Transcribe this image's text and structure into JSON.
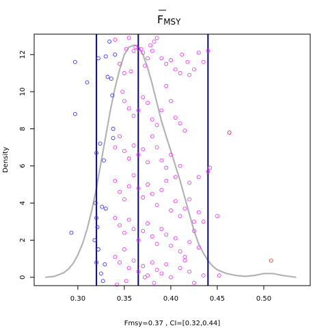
{
  "chart_data": {
    "type": "scatter",
    "title": "F",
    "title_subscript": "MSY",
    "title_overbar": true,
    "xlabel": "Fmsy=0.37 , CI=[0.32,0.44]",
    "ylabel": "Density",
    "xlim": [
      0.253,
      0.55
    ],
    "ylim": [
      -0.45,
      13.1
    ],
    "x_ticks": [
      0.3,
      0.35,
      0.4,
      0.45,
      0.5
    ],
    "x_tick_labels": [
      "0.30",
      "0.35",
      "0.40",
      "0.45",
      "0.50"
    ],
    "y_ticks": [
      0,
      2,
      4,
      6,
      8,
      10,
      12
    ],
    "y_tick_labels": [
      "0",
      "2",
      "4",
      "6",
      "8",
      "10",
      "12"
    ],
    "vlines": {
      "values": [
        0.32,
        0.365,
        0.44
      ],
      "color": "#00008b"
    },
    "density_curve": {
      "color": "#b3b3b3",
      "x": [
        0.265,
        0.275,
        0.285,
        0.29,
        0.295,
        0.3,
        0.305,
        0.31,
        0.315,
        0.32,
        0.325,
        0.33,
        0.335,
        0.34,
        0.345,
        0.35,
        0.355,
        0.36,
        0.363,
        0.366,
        0.37,
        0.375,
        0.38,
        0.385,
        0.39,
        0.395,
        0.4,
        0.405,
        0.41,
        0.415,
        0.42,
        0.425,
        0.43,
        0.435,
        0.44,
        0.445,
        0.45,
        0.46,
        0.47,
        0.48,
        0.49,
        0.5,
        0.51,
        0.52,
        0.535
      ],
      "y": [
        0.0,
        0.05,
        0.25,
        0.45,
        0.75,
        1.2,
        1.8,
        2.6,
        3.6,
        4.8,
        6.2,
        7.6,
        9.0,
        10.2,
        11.2,
        12.0,
        12.4,
        12.5,
        12.5,
        12.35,
        12.0,
        11.3,
        10.4,
        9.4,
        8.4,
        7.6,
        6.8,
        6.0,
        5.2,
        4.3,
        3.4,
        2.5,
        1.8,
        1.3,
        0.9,
        0.6,
        0.4,
        0.2,
        0.1,
        0.05,
        0.1,
        0.2,
        0.2,
        0.1,
        0.0
      ]
    },
    "series": [
      {
        "color": "#3333ff",
        "points": [
          [
            0.297,
            11.6
          ],
          [
            0.297,
            8.8
          ],
          [
            0.31,
            10.5
          ],
          [
            0.293,
            2.4
          ],
          [
            0.32,
            6.7
          ],
          [
            0.322,
            11.8
          ],
          [
            0.324,
            7.2
          ],
          [
            0.326,
            3.8
          ],
          [
            0.328,
            6.3
          ],
          [
            0.33,
            11.9
          ],
          [
            0.33,
            3.7
          ],
          [
            0.332,
            10.8
          ],
          [
            0.334,
            12.7
          ],
          [
            0.336,
            10.7
          ],
          [
            0.34,
            12.0
          ],
          [
            0.337,
            9.8
          ],
          [
            0.338,
            7.5
          ],
          [
            0.338,
            8.0
          ],
          [
            0.325,
            0.2
          ],
          [
            0.327,
            -0.2
          ],
          [
            0.329,
            0.7
          ],
          [
            0.321,
            2.7
          ],
          [
            0.319,
            4.0
          ],
          [
            0.322,
            1.5
          ],
          [
            0.32,
            3.2
          ],
          [
            0.318,
            2.0
          ],
          [
            0.32,
            0.8
          ]
        ]
      },
      {
        "color": "#ff33ff",
        "points": [
          [
            0.34,
            12.8
          ],
          [
            0.345,
            11.5
          ],
          [
            0.348,
            10.0
          ],
          [
            0.35,
            11.0
          ],
          [
            0.352,
            12.3
          ],
          [
            0.355,
            12.9
          ],
          [
            0.357,
            11.1
          ],
          [
            0.36,
            12.2
          ],
          [
            0.362,
            12.4
          ],
          [
            0.365,
            12.3
          ],
          [
            0.368,
            12.3
          ],
          [
            0.37,
            12.1
          ],
          [
            0.372,
            11.4
          ],
          [
            0.375,
            11.8
          ],
          [
            0.378,
            12.5
          ],
          [
            0.38,
            12.2
          ],
          [
            0.382,
            12.7
          ],
          [
            0.385,
            12.9
          ],
          [
            0.39,
            11.8
          ],
          [
            0.395,
            11.5
          ],
          [
            0.4,
            11.7
          ],
          [
            0.405,
            11.2
          ],
          [
            0.41,
            11.0
          ],
          [
            0.412,
            12.0
          ],
          [
            0.418,
            11.6
          ],
          [
            0.42,
            10.9
          ],
          [
            0.425,
            11.2
          ],
          [
            0.43,
            12.1
          ],
          [
            0.435,
            11.6
          ],
          [
            0.44,
            12.2
          ],
          [
            0.35,
            9.5
          ],
          [
            0.355,
            9.1
          ],
          [
            0.36,
            8.7
          ],
          [
            0.365,
            9.0
          ],
          [
            0.37,
            9.7
          ],
          [
            0.375,
            9.4
          ],
          [
            0.38,
            8.5
          ],
          [
            0.385,
            8.2
          ],
          [
            0.39,
            9.0
          ],
          [
            0.395,
            10.3
          ],
          [
            0.4,
            9.5
          ],
          [
            0.405,
            8.6
          ],
          [
            0.41,
            8.3
          ],
          [
            0.415,
            7.9
          ],
          [
            0.34,
            7.0
          ],
          [
            0.345,
            7.6
          ],
          [
            0.35,
            6.8
          ],
          [
            0.355,
            6.4
          ],
          [
            0.36,
            7.1
          ],
          [
            0.365,
            6.6
          ],
          [
            0.37,
            6.9
          ],
          [
            0.375,
            6.2
          ],
          [
            0.38,
            7.6
          ],
          [
            0.385,
            7.0
          ],
          [
            0.39,
            6.3
          ],
          [
            0.395,
            5.9
          ],
          [
            0.4,
            6.6
          ],
          [
            0.405,
            5.4
          ],
          [
            0.41,
            6.0
          ],
          [
            0.42,
            5.1
          ],
          [
            0.43,
            5.4
          ],
          [
            0.44,
            5.7
          ],
          [
            0.442,
            5.9
          ],
          [
            0.463,
            7.8
          ],
          [
            0.34,
            5.2
          ],
          [
            0.345,
            4.6
          ],
          [
            0.35,
            4.2
          ],
          [
            0.355,
            4.9
          ],
          [
            0.36,
            5.5
          ],
          [
            0.365,
            4.8
          ],
          [
            0.37,
            4.3
          ],
          [
            0.375,
            5.0
          ],
          [
            0.38,
            4.5
          ],
          [
            0.385,
            3.9
          ],
          [
            0.39,
            4.7
          ],
          [
            0.395,
            5.2
          ],
          [
            0.4,
            3.6
          ],
          [
            0.405,
            4.1
          ],
          [
            0.41,
            3.3
          ],
          [
            0.415,
            3.7
          ],
          [
            0.42,
            4.2
          ],
          [
            0.425,
            3.0
          ],
          [
            0.43,
            3.5
          ],
          [
            0.435,
            3.0
          ],
          [
            0.45,
            3.3
          ],
          [
            0.34,
            3.2
          ],
          [
            0.345,
            2.8
          ],
          [
            0.35,
            2.4
          ],
          [
            0.355,
            3.1
          ],
          [
            0.36,
            2.6
          ],
          [
            0.365,
            2.0
          ],
          [
            0.37,
            2.5
          ],
          [
            0.375,
            2.9
          ],
          [
            0.38,
            2.2
          ],
          [
            0.385,
            1.8
          ],
          [
            0.39,
            2.6
          ],
          [
            0.395,
            2.3
          ],
          [
            0.4,
            1.7
          ],
          [
            0.405,
            2.1
          ],
          [
            0.41,
            1.4
          ],
          [
            0.415,
            1.1
          ],
          [
            0.42,
            1.9
          ],
          [
            0.425,
            2.5
          ],
          [
            0.43,
            1.6
          ],
          [
            0.34,
            1.1
          ],
          [
            0.345,
            0.8
          ],
          [
            0.35,
            1.5
          ],
          [
            0.355,
            0.5
          ],
          [
            0.36,
            0.9
          ],
          [
            0.365,
            0.3
          ],
          [
            0.37,
            0.6
          ],
          [
            0.375,
            0.1
          ],
          [
            0.38,
            0.8
          ],
          [
            0.385,
            0.4
          ],
          [
            0.39,
            0.2
          ],
          [
            0.395,
            0.7
          ],
          [
            0.4,
            0.0
          ],
          [
            0.41,
            0.5
          ],
          [
            0.415,
            0.9
          ],
          [
            0.42,
            0.3
          ],
          [
            0.425,
            -0.3
          ],
          [
            0.435,
            0.1
          ],
          [
            0.452,
            0.1
          ],
          [
            0.342,
            -0.4
          ],
          [
            0.352,
            -0.2
          ],
          [
            0.362,
            -0.5
          ],
          [
            0.372,
            0.0
          ],
          [
            0.382,
            -0.3
          ]
        ]
      },
      {
        "color": "#ff3333",
        "points": [
          [
            0.463,
            7.8
          ],
          [
            0.508,
            0.9
          ]
        ]
      }
    ]
  }
}
